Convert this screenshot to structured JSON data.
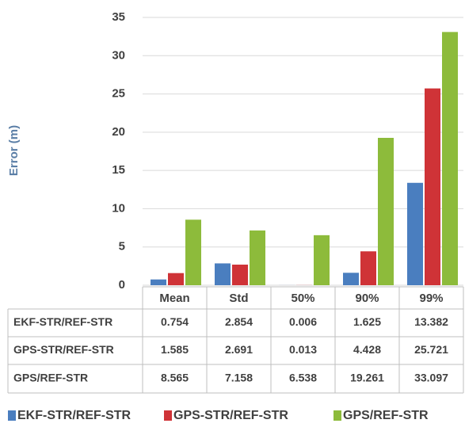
{
  "chart_data": {
    "type": "bar",
    "y_label": "Error (m)",
    "categories": [
      "Mean",
      "Std",
      "50%",
      "90%",
      "99%"
    ],
    "series": [
      {
        "name": "EKF-STR/REF-STR",
        "color": "#4a7ebf",
        "values": [
          0.754,
          2.854,
          0.006,
          1.625,
          13.382
        ]
      },
      {
        "name": "GPS-STR/REF-STR",
        "color": "#cf3337",
        "values": [
          1.585,
          2.691,
          0.013,
          4.428,
          25.721
        ]
      },
      {
        "name": "GPS/REF-STR",
        "color": "#8dbb3b",
        "values": [
          8.565,
          7.158,
          6.538,
          19.261,
          33.097
        ]
      }
    ],
    "ylim": [
      0,
      35
    ],
    "yticks": [
      0,
      5,
      10,
      15,
      20,
      25,
      30,
      35
    ],
    "grid": true,
    "legend": "bottom"
  }
}
